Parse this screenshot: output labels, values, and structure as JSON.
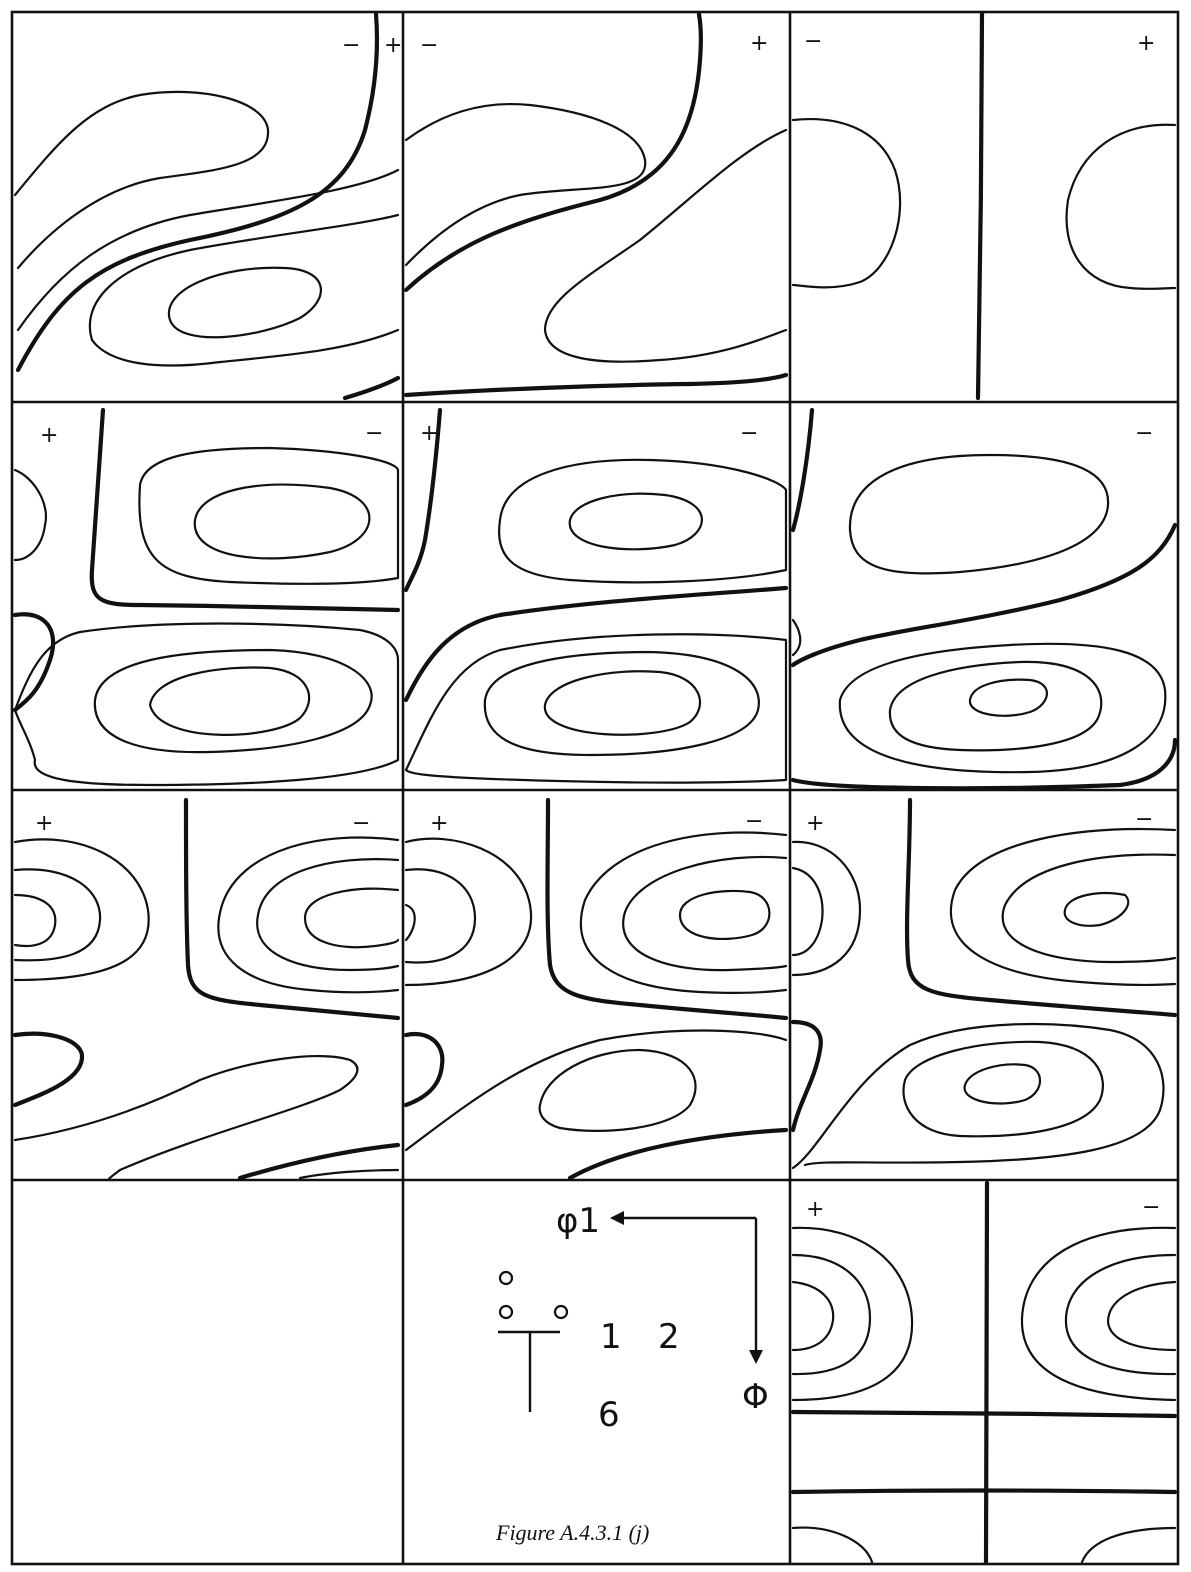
{
  "caption": "Figure A.4.3.1  (j)",
  "axes": {
    "horizontal": "φ1",
    "vertical": "Φ"
  },
  "symmetry": {
    "first": "1",
    "second": "2",
    "third": "6"
  },
  "signs": {
    "minus": "−",
    "plus": "+"
  }
}
